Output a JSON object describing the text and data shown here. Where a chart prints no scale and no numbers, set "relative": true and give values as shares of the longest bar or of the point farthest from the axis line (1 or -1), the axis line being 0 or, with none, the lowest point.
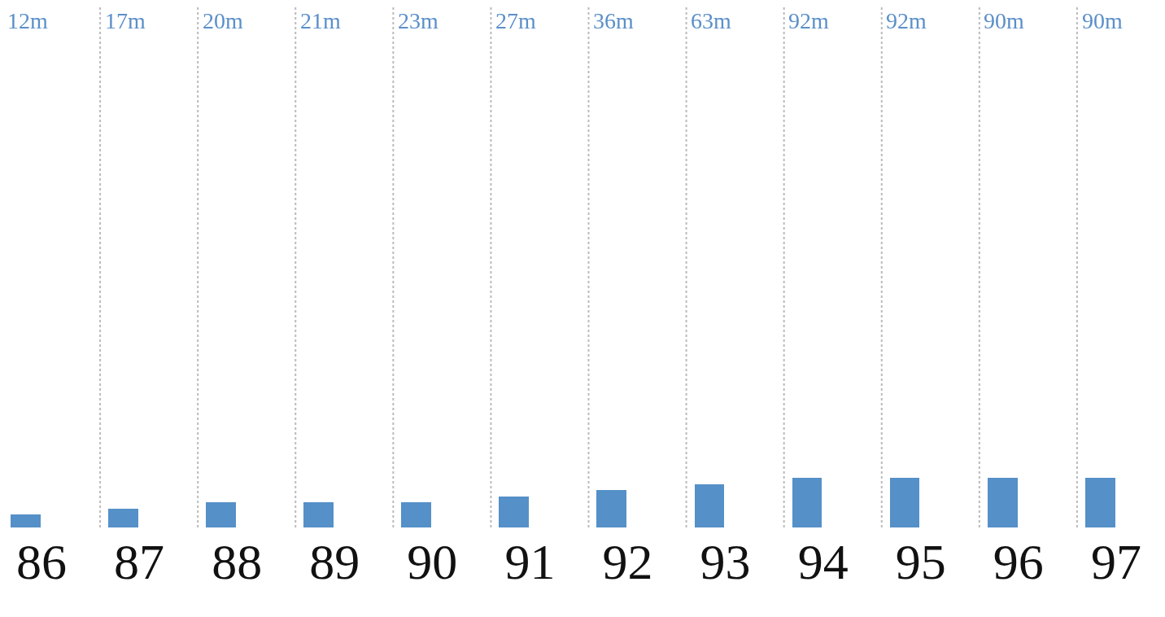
{
  "chart_data": {
    "type": "bar",
    "relative": true,
    "categories": [
      "86",
      "87",
      "88",
      "89",
      "90",
      "91",
      "92",
      "93",
      "94",
      "95",
      "96",
      "97"
    ],
    "values": [
      0.26,
      0.38,
      0.51,
      0.51,
      0.51,
      0.62,
      0.75,
      0.87,
      1,
      1,
      1,
      1
    ],
    "color": "#5590c8",
    "grid": "x",
    "annotations": [
      "12m",
      "17m",
      "20m",
      "21m",
      "23m",
      "27m",
      "36m",
      "63m",
      "92m",
      "92m",
      "90m",
      "90m"
    ]
  }
}
